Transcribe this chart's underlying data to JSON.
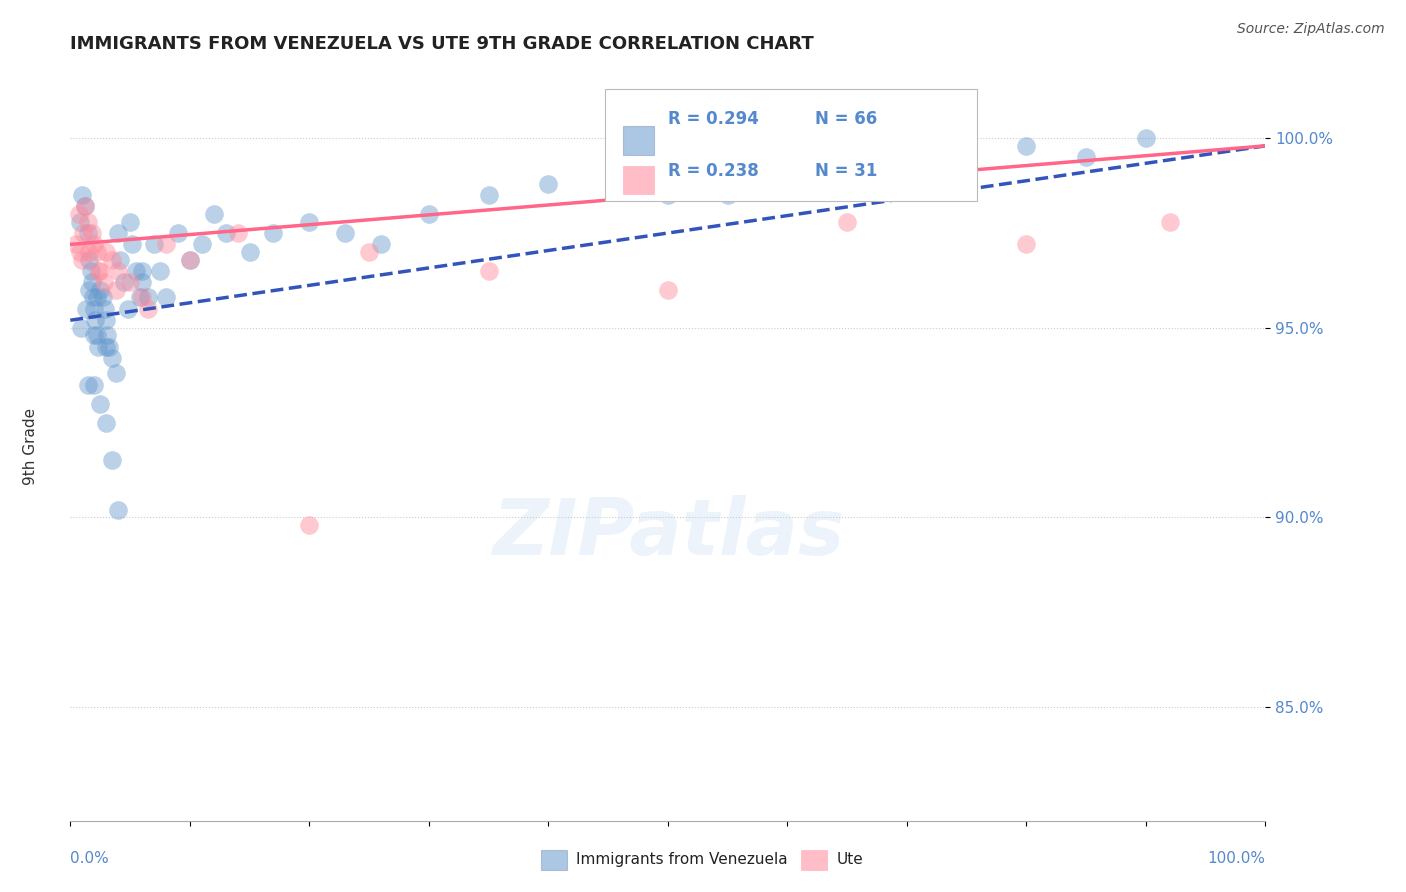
{
  "title": "IMMIGRANTS FROM VENEZUELA VS UTE 9TH GRADE CORRELATION CHART",
  "source_text": "Source: ZipAtlas.com",
  "ylabel": "9th Grade",
  "ytick_labels": [
    "85.0%",
    "90.0%",
    "95.0%",
    "100.0%"
  ],
  "ytick_values": [
    85.0,
    90.0,
    95.0,
    100.0
  ],
  "xmin": 0.0,
  "xmax": 100.0,
  "ymin": 82.0,
  "ymax": 102.0,
  "legend_blue_r": "R = 0.294",
  "legend_blue_n": "N = 66",
  "legend_pink_r": "R = 0.238",
  "legend_pink_n": "N = 31",
  "blue_color": "#6699CC",
  "pink_color": "#FF8899",
  "trend_blue_color": "#3355BB",
  "trend_pink_color": "#FF6688",
  "blue_scatter_x": [
    0.8,
    1.0,
    1.2,
    1.5,
    1.6,
    1.7,
    1.8,
    1.9,
    2.0,
    2.1,
    2.2,
    2.3,
    2.5,
    2.7,
    2.9,
    3.0,
    3.1,
    3.2,
    3.5,
    3.8,
    4.0,
    4.2,
    4.5,
    4.8,
    5.0,
    5.2,
    5.5,
    5.8,
    6.0,
    6.5,
    7.0,
    7.5,
    8.0,
    9.0,
    10.0,
    11.0,
    12.0,
    13.0,
    15.0,
    17.0,
    20.0,
    23.0,
    26.0,
    30.0,
    35.0,
    40.0,
    50.0,
    60.0,
    70.0,
    80.0,
    85.0,
    90.0,
    2.0,
    2.5,
    3.0,
    3.5,
    0.9,
    1.3,
    1.6,
    2.0,
    4.0,
    6.0,
    1.5,
    2.2,
    3.0,
    55.0
  ],
  "blue_scatter_y": [
    97.8,
    98.5,
    98.2,
    97.5,
    96.8,
    96.5,
    96.2,
    95.8,
    95.5,
    95.2,
    94.8,
    94.5,
    96.0,
    95.8,
    95.5,
    95.2,
    94.8,
    94.5,
    94.2,
    93.8,
    97.5,
    96.8,
    96.2,
    95.5,
    97.8,
    97.2,
    96.5,
    95.8,
    96.5,
    95.8,
    97.2,
    96.5,
    95.8,
    97.5,
    96.8,
    97.2,
    98.0,
    97.5,
    97.0,
    97.5,
    97.8,
    97.5,
    97.2,
    98.0,
    98.5,
    98.8,
    98.5,
    99.2,
    99.5,
    99.8,
    99.5,
    100.0,
    93.5,
    93.0,
    92.5,
    91.5,
    95.0,
    95.5,
    96.0,
    94.8,
    90.2,
    96.2,
    93.5,
    95.8,
    94.5,
    98.5
  ],
  "pink_scatter_x": [
    0.5,
    0.8,
    1.0,
    1.2,
    1.5,
    1.8,
    2.0,
    2.2,
    2.5,
    2.8,
    3.0,
    3.5,
    4.0,
    5.0,
    6.0,
    8.0,
    10.0,
    14.0,
    20.0,
    25.0,
    35.0,
    50.0,
    65.0,
    80.0,
    92.0,
    0.7,
    1.1,
    1.6,
    2.3,
    3.8,
    6.5
  ],
  "pink_scatter_y": [
    97.2,
    97.0,
    96.8,
    98.2,
    97.8,
    97.5,
    97.2,
    97.0,
    96.5,
    96.2,
    97.0,
    96.8,
    96.5,
    96.2,
    95.8,
    97.2,
    96.8,
    97.5,
    89.8,
    97.0,
    96.5,
    96.0,
    97.8,
    97.2,
    97.8,
    98.0,
    97.5,
    97.0,
    96.5,
    96.0,
    95.5
  ],
  "blue_trend_y_start": 95.2,
  "blue_trend_y_end": 99.8,
  "pink_trend_y_start": 97.2,
  "pink_trend_y_end": 99.8,
  "watermark_text": "ZIPatlas",
  "background_color": "#FFFFFF",
  "grid_color": "#CCCCCC",
  "axis_label_color": "#5588CC",
  "title_fontsize": 13,
  "axis_fontsize": 11,
  "legend_fontsize": 12
}
